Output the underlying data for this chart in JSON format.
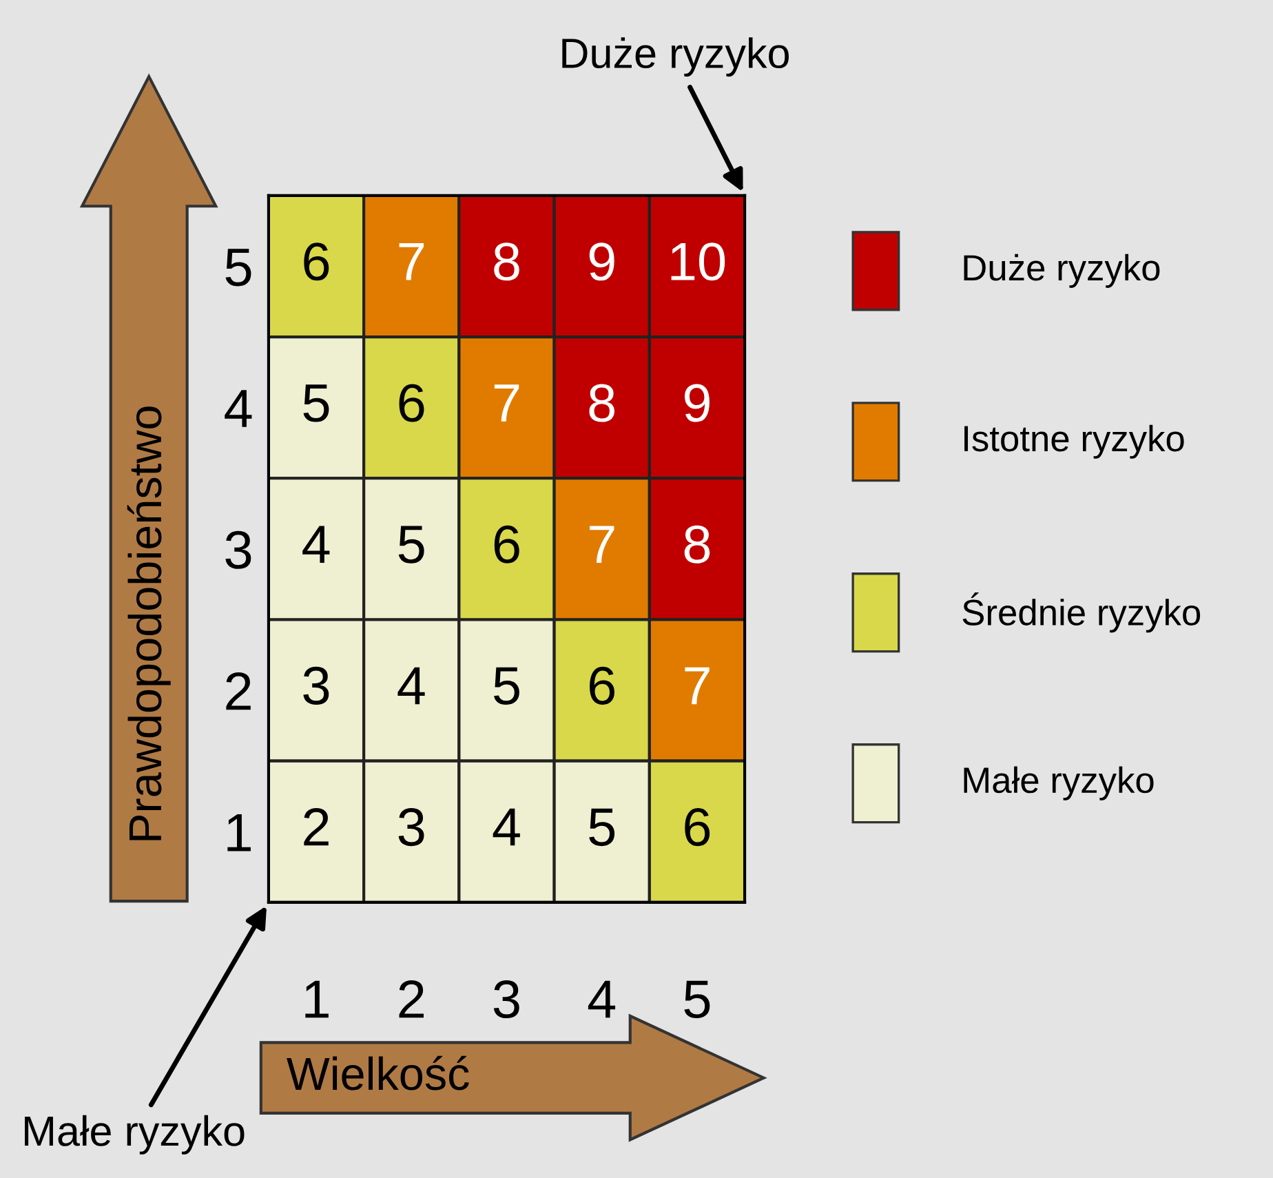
{
  "chart_data": {
    "type": "heatmap",
    "xlabel": "Wielkość",
    "ylabel": "Prawdopodobieństwo",
    "categories": [
      "1",
      "2",
      "3",
      "4",
      "5"
    ],
    "y_categories": [
      "5",
      "4",
      "3",
      "2",
      "1"
    ],
    "cells": [
      [
        6,
        7,
        8,
        9,
        10
      ],
      [
        5,
        6,
        7,
        8,
        9
      ],
      [
        4,
        5,
        6,
        7,
        8
      ],
      [
        3,
        4,
        5,
        6,
        7
      ],
      [
        2,
        3,
        4,
        5,
        6
      ]
    ],
    "colors": [
      "#d8d84a",
      "#e07b00",
      "#c00000",
      "#c00000",
      "#c00000",
      "#efefd2",
      "#d8d84a",
      "#e07b00",
      "#c00000",
      "#c00000",
      "#efefd2",
      "#efefd2",
      "#d8d84a",
      "#e07b00",
      "#c00000",
      "#efefd2",
      "#efefd2",
      "#efefd2",
      "#d8d84a",
      "#e07b00",
      "#efefd2",
      "#efefd2",
      "#efefd2",
      "#efefd2",
      "#d8d84a"
    ],
    "annotations": [
      "Duże ryzyko",
      "Małe ryzyko",
      "Duże ryzyko",
      "Istotne ryzyko",
      "Średnie ryzyko",
      "Małe ryzyko"
    ],
    "data_labels": true,
    "grid": false
  }
}
